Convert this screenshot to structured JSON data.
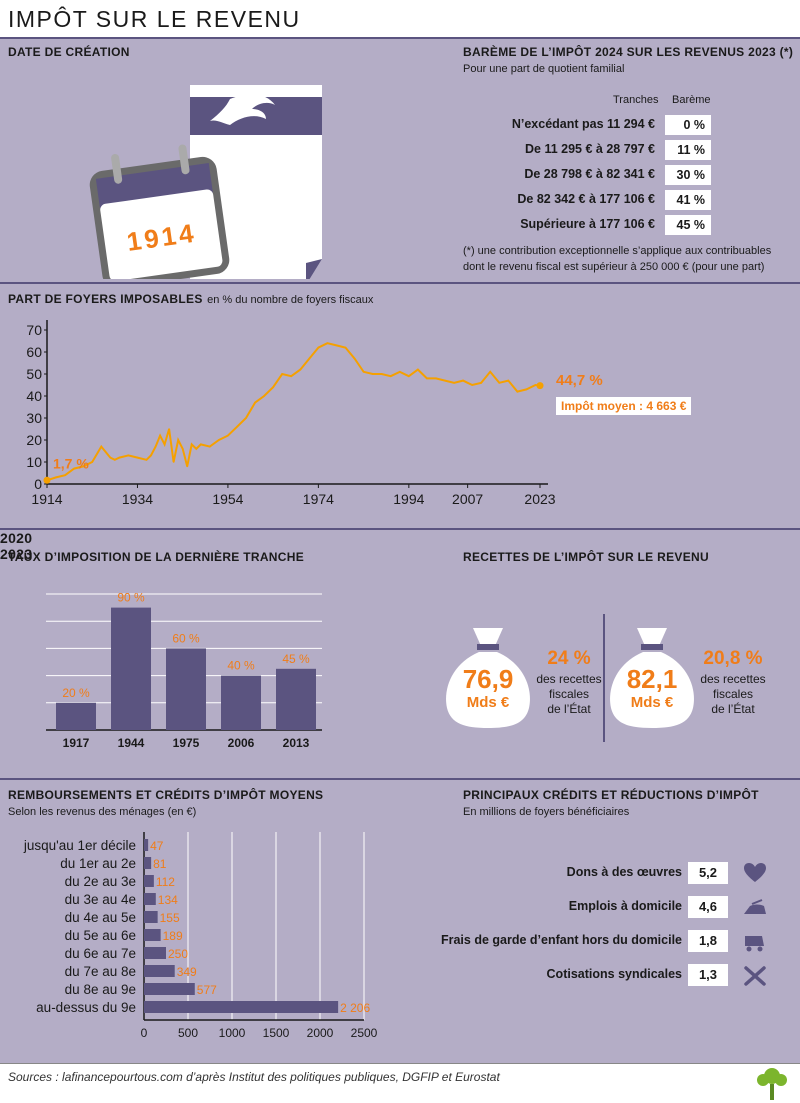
{
  "title": "IMPÔT SUR LE REVENU",
  "creation": {
    "heading": "DATE DE CRÉATION",
    "year": "1914"
  },
  "bareme": {
    "heading": "BARÈME DE L’IMPÔT 2024 SUR LES REVENUS 2023 (*)",
    "subtitle": "Pour une part de quotient familial",
    "col_tranches": "Tranches",
    "col_bareme": "Barème",
    "rows": [
      {
        "tranche": "N’excédant pas 11 294 €",
        "taux": "0 %"
      },
      {
        "tranche": "De 11 295 € à 28 797 €",
        "taux": "11 %"
      },
      {
        "tranche": "De 28 798 € à 82 341 €",
        "taux": "30 %"
      },
      {
        "tranche": "De 82 342 € à 177 106 €",
        "taux": "41 %"
      },
      {
        "tranche": "Supérieure à 177 106 €",
        "taux": "45 %"
      }
    ],
    "note_line1": "(*) une contribution exceptionnelle s’applique aux contribuables",
    "note_line2": "dont le revenu fiscal est supérieur à 250 000 € (pour une part)"
  },
  "foyers": {
    "heading": "PART DE FOYERS IMPOSABLES",
    "unit": "en % du nombre de foyers fiscaux",
    "start_label": "1,7 %",
    "end_label": "44,7 %",
    "impot_moyen": "Impôt moyen : 4 663 €"
  },
  "chart_data": [
    {
      "type": "line",
      "x": [
        1914,
        1916,
        1918,
        1920,
        1922,
        1924,
        1926,
        1928,
        1929,
        1930,
        1932,
        1934,
        1936,
        1937,
        1938,
        1939,
        1940,
        1941,
        1942,
        1943,
        1944,
        1945,
        1946,
        1947,
        1948,
        1950,
        1952,
        1954,
        1956,
        1958,
        1960,
        1962,
        1964,
        1966,
        1968,
        1970,
        1972,
        1974,
        1976,
        1978,
        1980,
        1982,
        1984,
        1986,
        1988,
        1990,
        1992,
        1994,
        1996,
        1998,
        2000,
        2002,
        2004,
        2006,
        2007,
        2008,
        2010,
        2012,
        2014,
        2016,
        2018,
        2020,
        2022,
        2023
      ],
      "values": [
        1.7,
        3,
        4,
        7,
        8,
        10,
        17,
        12,
        11,
        12,
        13,
        12,
        11,
        13,
        17,
        22,
        18,
        25,
        10,
        20,
        16,
        8,
        18,
        16,
        18,
        17,
        20,
        22,
        26,
        30,
        37,
        40,
        44,
        50,
        49,
        52,
        57,
        62,
        64,
        63,
        62,
        57,
        51,
        50,
        50,
        49,
        51,
        49,
        52,
        48,
        48,
        47,
        46,
        47,
        46,
        45,
        46,
        51,
        46,
        47,
        42,
        43,
        45,
        44.7
      ],
      "x_ticks": [
        "1914",
        "1934",
        "1954",
        "1974",
        "1994",
        "2007",
        "2023"
      ],
      "y_ticks": [
        "0",
        "10",
        "20",
        "30",
        "40",
        "50",
        "60",
        "70"
      ],
      "ylim": [
        0,
        70
      ],
      "xlim": [
        1914,
        2023
      ],
      "color": "#f5a000"
    },
    {
      "type": "bar",
      "title": "TAUX D’IMPOSITION DE LA DERNIÈRE TRANCHE",
      "categories": [
        "1917",
        "1944",
        "1975",
        "2006",
        "2013"
      ],
      "values": [
        20,
        90,
        60,
        40,
        45
      ],
      "labels": [
        "20 %",
        "90 %",
        "60 %",
        "40 %",
        "45 %"
      ],
      "ylim": [
        0,
        100
      ],
      "color": "#5b5480"
    },
    {
      "type": "bar",
      "title": "REMBOURSEMENTS ET CRÉDITS D’IMPÔT MOYENS",
      "subtitle": "Selon les revenus des ménages (en €)",
      "orientation": "horizontal",
      "categories": [
        "jusqu'au 1er décile",
        "du 1er au 2e",
        "du 2e au 3e",
        "du 3e au 4e",
        "du 4e au 5e",
        "du 5e au 6e",
        "du 6e au 7e",
        "du 7e au 8e",
        "du 8e au 9e",
        "au-dessus du 9e"
      ],
      "values": [
        47,
        81,
        112,
        134,
        155,
        189,
        250,
        349,
        577,
        2206
      ],
      "labels": [
        "47",
        "81",
        "112",
        "134",
        "155",
        "189",
        "250",
        "349",
        "577",
        "2 206"
      ],
      "x_ticks": [
        "0",
        "500",
        "1000",
        "1500",
        "2000",
        "2500"
      ],
      "xlim": [
        0,
        2500
      ],
      "color": "#5b5480"
    }
  ],
  "taux": {
    "heading": "TAUX D’IMPOSITION DE LA DERNIÈRE TRANCHE"
  },
  "recettes": {
    "heading": "RECETTES DE L’IMPÔT SUR LE REVENU",
    "items": [
      {
        "year": "2020",
        "amount": "76,9",
        "unit": "Mds €",
        "share": "24 %",
        "desc1": "des recettes",
        "desc2": "fiscales",
        "desc3": "de l’État"
      },
      {
        "year": "2023",
        "amount": "82,1",
        "unit": "Mds €",
        "share": "20,8 %",
        "desc1": "des recettes",
        "desc2": "fiscales",
        "desc3": "de l’État"
      }
    ]
  },
  "rembours": {
    "heading": "REMBOURSEMENTS ET CRÉDITS D’IMPÔT MOYENS",
    "subtitle": "Selon les revenus des ménages (en €)"
  },
  "credits": {
    "heading": "PRINCIPAUX CRÉDITS ET RÉDUCTIONS D’IMPÔT",
    "subtitle": "En millions de foyers bénéficiaires",
    "items": [
      {
        "label": "Dons à des œuvres",
        "value": "5,2",
        "icon": "heart-icon"
      },
      {
        "label": "Emplois à domicile",
        "value": "4,6",
        "icon": "iron-icon"
      },
      {
        "label": "Frais de garde d’enfant hors du domicile",
        "value": "1,8",
        "icon": "stroller-icon"
      },
      {
        "label": "Cotisations syndicales",
        "value": "1,3",
        "icon": "tools-icon"
      }
    ]
  },
  "sources": "Sources : lafinancepourtous.com d’après Institut des politiques publiques, DGFIP et Eurostat",
  "colors": {
    "panel": "#b4adc6",
    "purple": "#5b5480",
    "orange": "#f07d19",
    "line": "#f5a000"
  }
}
